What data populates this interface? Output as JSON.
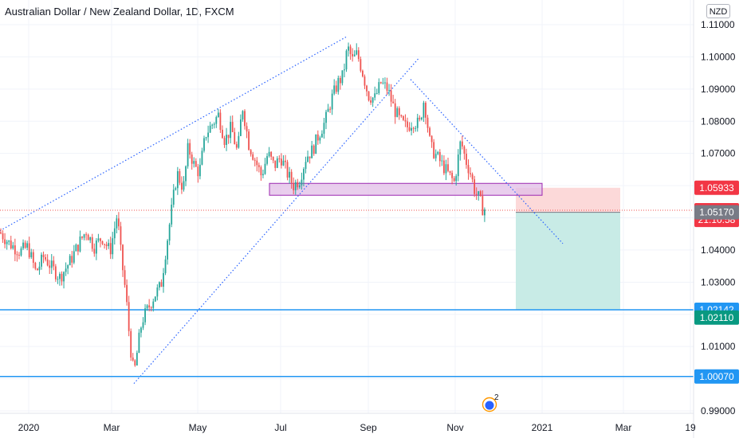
{
  "header": {
    "title": "Australian Dollar / New Zealand Dollar, 1D, FXCM",
    "currency": "NZD"
  },
  "colors": {
    "up": "#26a69a",
    "down": "#ef5350",
    "trend": "#2962ff",
    "horizontal": "#2196f3",
    "zone_fill": "#e1bee7",
    "zone_border": "#9c27b0",
    "stop_fill": "#fcd9d9",
    "target_fill": "#c8ebe6"
  },
  "chart_data": {
    "type": "candlestick",
    "symbol": "AUD/NZD",
    "interval": "1D",
    "ylim": [
      0.985,
      1.118
    ],
    "y_ticks": [
      "1.11000",
      "1.10000",
      "1.09000",
      "1.08000",
      "1.07000",
      "1.06000",
      "1.05000",
      "1.04000",
      "1.03000",
      "1.02000",
      "1.01000",
      "1.00000",
      "0.99000"
    ],
    "x_ticks": [
      "2020",
      "Mar",
      "May",
      "Jul",
      "Sep",
      "Nov",
      "2021",
      "Mar",
      "19"
    ],
    "price_path": [
      [
        0,
        1.0455
      ],
      [
        12,
        1.042
      ],
      [
        25,
        1.0395
      ],
      [
        35,
        1.041
      ],
      [
        45,
        1.033
      ],
      [
        55,
        1.038
      ],
      [
        65,
        1.0345
      ],
      [
        75,
        1.0315
      ],
      [
        88,
        1.0365
      ],
      [
        100,
        1.0425
      ],
      [
        108,
        1.046
      ],
      [
        118,
        1.041
      ],
      [
        128,
        1.044
      ],
      [
        138,
        1.0395
      ],
      [
        147,
        1.051
      ],
      [
        152,
        1.038
      ],
      [
        158,
        1.026
      ],
      [
        163,
        1.011
      ],
      [
        168,
        1.001
      ],
      [
        173,
        1.01
      ],
      [
        178,
        1.018
      ],
      [
        186,
        1.022
      ],
      [
        194,
        1.026
      ],
      [
        202,
        1.029
      ],
      [
        208,
        1.04
      ],
      [
        215,
        1.052
      ],
      [
        222,
        1.064
      ],
      [
        230,
        1.059
      ],
      [
        236,
        1.072
      ],
      [
        244,
        1.066
      ],
      [
        250,
        1.064
      ],
      [
        258,
        1.076
      ],
      [
        266,
        1.079
      ],
      [
        274,
        1.082
      ],
      [
        282,
        1.074
      ],
      [
        290,
        1.078
      ],
      [
        298,
        1.07
      ],
      [
        304,
        1.085
      ],
      [
        312,
        1.073
      ],
      [
        320,
        1.068
      ],
      [
        328,
        1.063
      ],
      [
        336,
        1.07
      ],
      [
        344,
        1.066
      ],
      [
        352,
        1.069
      ],
      [
        360,
        1.064
      ],
      [
        368,
        1.06
      ],
      [
        376,
        1.062
      ],
      [
        384,
        1.069
      ],
      [
        392,
        1.071
      ],
      [
        400,
        1.076
      ],
      [
        408,
        1.08
      ],
      [
        416,
        1.087
      ],
      [
        424,
        1.092
      ],
      [
        430,
        1.094
      ],
      [
        436,
        1.103
      ],
      [
        442,
        1.099
      ],
      [
        448,
        1.101
      ],
      [
        455,
        1.095
      ],
      [
        462,
        1.088
      ],
      [
        470,
        1.087
      ],
      [
        478,
        1.092
      ],
      [
        486,
        1.09
      ],
      [
        494,
        1.084
      ],
      [
        502,
        1.08
      ],
      [
        510,
        1.078
      ],
      [
        518,
        1.08
      ],
      [
        526,
        1.079
      ],
      [
        532,
        1.087
      ],
      [
        540,
        1.072
      ],
      [
        548,
        1.069
      ],
      [
        556,
        1.066
      ],
      [
        564,
        1.063
      ],
      [
        570,
        1.061
      ],
      [
        578,
        1.074
      ],
      [
        584,
        1.068
      ],
      [
        590,
        1.064
      ],
      [
        596,
        1.058
      ],
      [
        601,
        1.056
      ],
      [
        605,
        1.053
      ],
      [
        610,
        1.0525
      ]
    ],
    "annotations": {
      "upper_trendline": [
        [
          0,
          1.046
        ],
        [
          435,
          1.1063
        ]
      ],
      "lower_trendline": [
        [
          168,
          0.9985
        ],
        [
          525,
          1.0995
        ]
      ],
      "descending_trendline": [
        [
          515,
          1.093
        ],
        [
          706,
          1.042
        ]
      ],
      "resistance_zone": {
        "x0": 338,
        "x1": 680,
        "top": 1.0607,
        "bottom": 1.057
      },
      "current_price_line": 1.05234,
      "horizontal_levels": [
        1.02142,
        1.0007
      ],
      "position": {
        "x0": 647,
        "x1": 778,
        "stop": 1.05933,
        "entry": 1.0517,
        "target": 1.02142
      }
    },
    "price_tags": [
      {
        "label": "1.05933",
        "value": 1.05933,
        "color": "#f23645"
      },
      {
        "label": "1.05234",
        "value": 1.05234,
        "color": "#f23645"
      },
      {
        "label": "21:10:58",
        "value": 1.04935,
        "color": "#f23645"
      },
      {
        "label": "1.05170",
        "value": 1.0517,
        "color": "#787b86"
      },
      {
        "label": "1.02142",
        "value": 1.02142,
        "color": "#2196f3"
      },
      {
        "label": "1.02110",
        "value": 1.019,
        "color": "#089981"
      },
      {
        "label": "1.00070",
        "value": 1.0007,
        "color": "#2196f3"
      }
    ],
    "event_badge": {
      "label": "2",
      "x": 614
    }
  }
}
